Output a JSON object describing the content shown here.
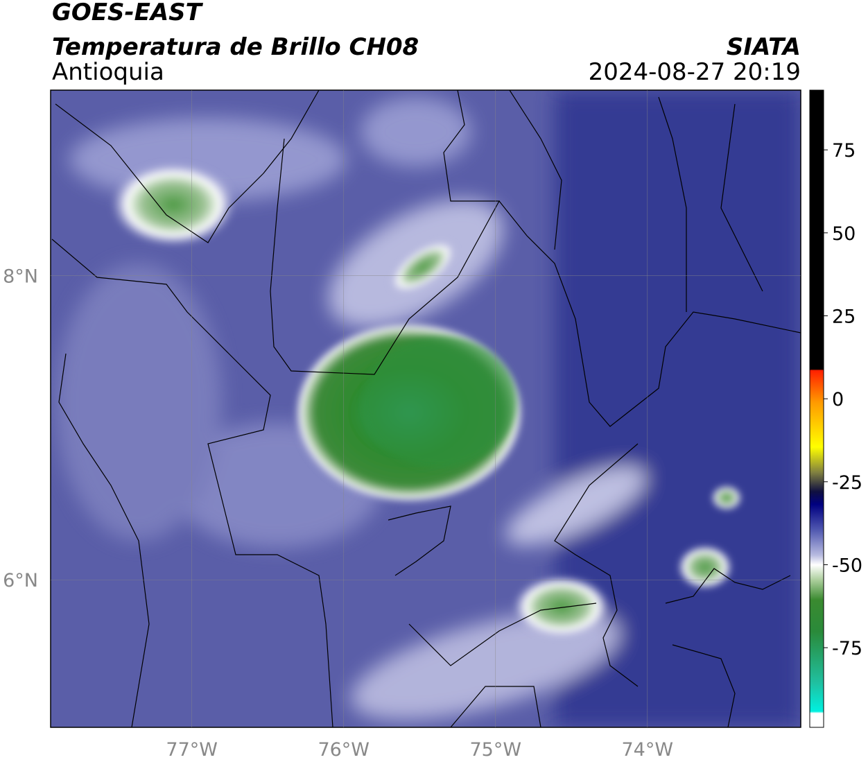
{
  "header": {
    "satellite": "GOES-EAST",
    "product": "Temperatura de Brillo CH08",
    "region": "Antioquia",
    "agency": "SIATA",
    "datetime": "2024-08-27 20:19"
  },
  "map": {
    "xlim": [
      -77.93,
      -72.99
    ],
    "ylim": [
      5.03,
      9.22
    ],
    "xticks": [
      {
        "value": -77,
        "label": "77°W"
      },
      {
        "value": -76,
        "label": "76°W"
      },
      {
        "value": -75,
        "label": "75°W"
      },
      {
        "value": -74,
        "label": "74°W"
      }
    ],
    "yticks": [
      {
        "value": 8,
        "label": "8°N"
      },
      {
        "value": 6,
        "label": "6°N"
      }
    ]
  },
  "colorbar": {
    "lim": [
      -99,
      93
    ],
    "ticks": [
      75,
      50,
      25,
      0,
      -25,
      -50,
      -75
    ]
  }
}
